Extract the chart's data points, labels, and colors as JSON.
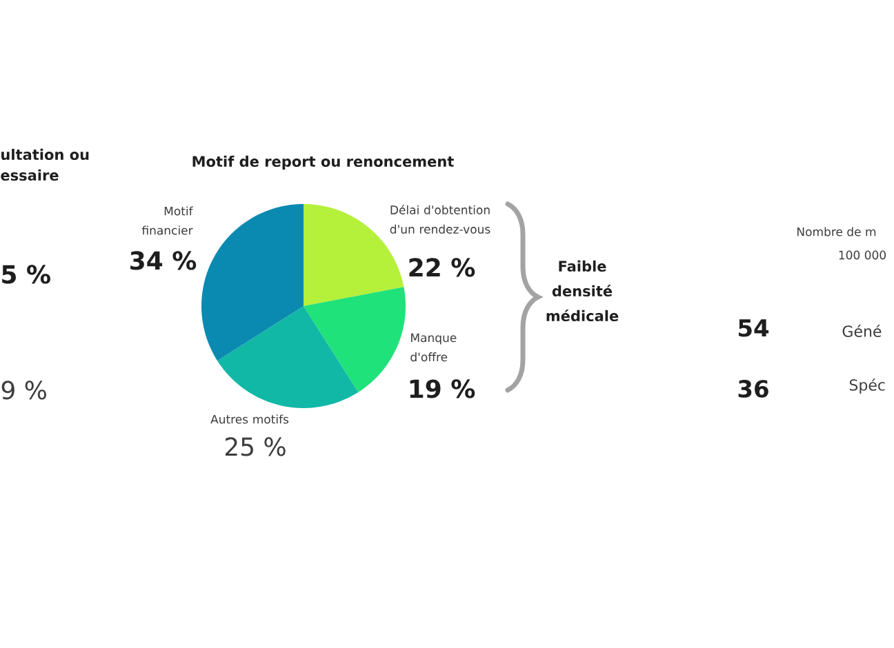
{
  "chart_data": {
    "type": "pie",
    "title": "Motif de report ou renoncement",
    "categories": [
      "Délai d'obtention d'un rendez-vous",
      "Manque d'offre",
      "Autres motifs",
      "Motif financier"
    ],
    "values": [
      22,
      19,
      25,
      34
    ],
    "colors": [
      "#b5f03a",
      "#20e27a",
      "#12b8a6",
      "#0b8ab1"
    ],
    "value_labels": [
      "22 %",
      "19 %",
      "25 %",
      "34 %"
    ],
    "annotations": [
      "ultation ou",
      "essaire",
      "5 %",
      "9 %",
      "Faible densité médicale",
      "Nombre de m",
      "100 000",
      "54",
      "Géné",
      "36",
      "Spéc"
    ]
  }
}
